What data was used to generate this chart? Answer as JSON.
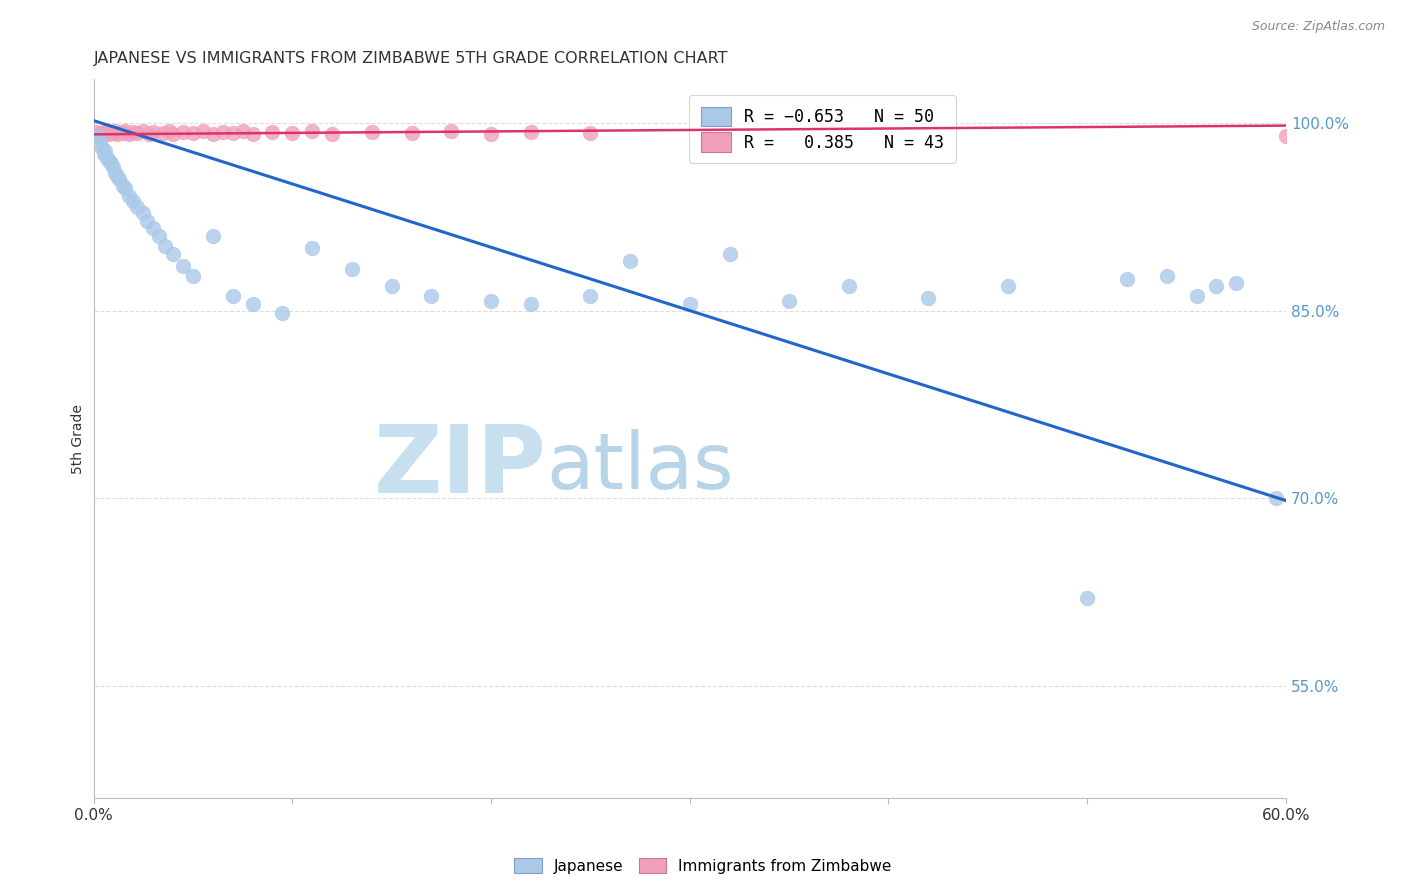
{
  "title": "JAPANESE VS IMMIGRANTS FROM ZIMBABWE 5TH GRADE CORRELATION CHART",
  "source": "Source: ZipAtlas.com",
  "ylabel": "5th Grade",
  "xlim": [
    0.0,
    0.6
  ],
  "ylim": [
    0.46,
    1.035
  ],
  "yticks": [
    0.55,
    0.7,
    0.85,
    1.0
  ],
  "ytick_labels": [
    "55.0%",
    "70.0%",
    "85.0%",
    "100.0%"
  ],
  "xticks": [
    0.0,
    0.1,
    0.2,
    0.3,
    0.4,
    0.5,
    0.6
  ],
  "xtick_labels": [
    "0.0%",
    "",
    "",
    "",
    "",
    "",
    "60.0%"
  ],
  "japanese_color": "#aac8e8",
  "zimbabwe_color": "#f0a0b8",
  "trendline_japanese_color": "#2266cc",
  "trendline_zimbabwe_color": "#dd3366",
  "watermark_zip_color": "#c8dff0",
  "watermark_atlas_color": "#b8d4e8",
  "background_color": "#ffffff",
  "grid_color": "#dddddd",
  "ytick_color": "#5599cc",
  "japanese_x": [
    0.002,
    0.003,
    0.004,
    0.005,
    0.006,
    0.007,
    0.008,
    0.009,
    0.01,
    0.011,
    0.012,
    0.013,
    0.015,
    0.016,
    0.018,
    0.02,
    0.022,
    0.025,
    0.027,
    0.03,
    0.033,
    0.036,
    0.04,
    0.045,
    0.05,
    0.06,
    0.07,
    0.08,
    0.095,
    0.11,
    0.13,
    0.15,
    0.17,
    0.2,
    0.22,
    0.25,
    0.27,
    0.3,
    0.32,
    0.35,
    0.38,
    0.42,
    0.46,
    0.5,
    0.52,
    0.54,
    0.555,
    0.565,
    0.575,
    0.595
  ],
  "japanese_y": [
    0.99,
    0.985,
    0.98,
    0.975,
    0.978,
    0.972,
    0.97,
    0.968,
    0.965,
    0.96,
    0.958,
    0.955,
    0.95,
    0.948,
    0.942,
    0.938,
    0.933,
    0.928,
    0.922,
    0.916,
    0.91,
    0.902,
    0.895,
    0.886,
    0.878,
    0.91,
    0.862,
    0.855,
    0.848,
    0.9,
    0.883,
    0.87,
    0.862,
    0.858,
    0.855,
    0.862,
    0.89,
    0.855,
    0.895,
    0.858,
    0.87,
    0.86,
    0.87,
    0.62,
    0.875,
    0.878,
    0.862,
    0.87,
    0.872,
    0.7
  ],
  "zimbabwe_x": [
    0.001,
    0.002,
    0.003,
    0.004,
    0.005,
    0.006,
    0.007,
    0.008,
    0.009,
    0.01,
    0.011,
    0.012,
    0.014,
    0.015,
    0.016,
    0.018,
    0.02,
    0.022,
    0.025,
    0.028,
    0.03,
    0.035,
    0.038,
    0.04,
    0.045,
    0.05,
    0.055,
    0.06,
    0.065,
    0.07,
    0.075,
    0.08,
    0.09,
    0.1,
    0.11,
    0.12,
    0.14,
    0.16,
    0.18,
    0.2,
    0.22,
    0.25,
    0.6
  ],
  "zimbabwe_y": [
    0.993,
    0.99,
    0.992,
    0.991,
    0.993,
    0.992,
    0.994,
    0.991,
    0.993,
    0.992,
    0.994,
    0.991,
    0.993,
    0.992,
    0.994,
    0.991,
    0.993,
    0.992,
    0.994,
    0.991,
    0.993,
    0.992,
    0.994,
    0.991,
    0.993,
    0.992,
    0.994,
    0.991,
    0.993,
    0.992,
    0.994,
    0.991,
    0.993,
    0.992,
    0.994,
    0.991,
    0.993,
    0.992,
    0.994,
    0.991,
    0.993,
    0.992,
    0.99
  ],
  "trendline_jap_x0": 0.0,
  "trendline_jap_y0": 1.002,
  "trendline_jap_x1": 0.6,
  "trendline_jap_y1": 0.698,
  "trendline_zim_x0": 0.0,
  "trendline_zim_y0": 0.991,
  "trendline_zim_x1": 0.6,
  "trendline_zim_y1": 0.998
}
